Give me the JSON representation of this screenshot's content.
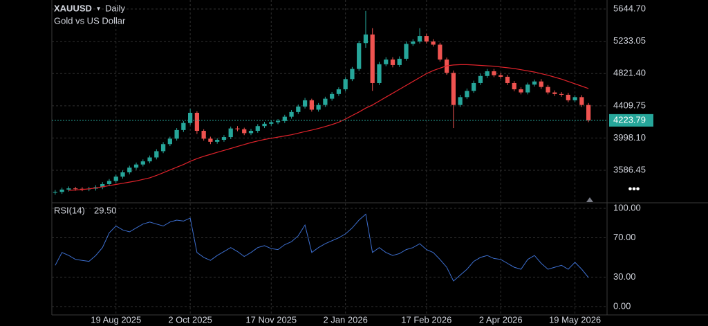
{
  "chart_data": [
    {
      "type": "candlestick",
      "symbol": "XAUUSD",
      "interval": "Daily",
      "subtitle": "Gold vs US Dollar",
      "up_color": "#26a69a",
      "down_color": "#ef5350",
      "ma_color": "#e0232b",
      "last_price_color": "#26a69a",
      "categories": [
        null,
        null,
        null,
        null,
        null,
        null,
        null,
        null,
        null,
        "19 Aug 2025",
        null,
        null,
        null,
        null,
        null,
        null,
        null,
        null,
        null,
        null,
        "2 Oct 2025",
        null,
        null,
        null,
        null,
        null,
        null,
        null,
        null,
        null,
        null,
        null,
        "17 Nov 2025",
        null,
        null,
        null,
        null,
        null,
        null,
        null,
        null,
        null,
        null,
        "2 Jan 2026",
        null,
        null,
        null,
        null,
        null,
        null,
        null,
        null,
        null,
        null,
        null,
        "17 Feb 2026",
        null,
        null,
        null,
        null,
        null,
        null,
        null,
        null,
        null,
        null,
        "2 Apr 2026",
        null,
        null,
        null,
        null,
        null,
        null,
        null,
        null,
        null,
        null,
        "19 May 2026",
        null,
        null
      ],
      "open": [
        3300,
        3310,
        3340,
        3355,
        3350,
        3345,
        3352,
        3370,
        3410,
        3450,
        3505,
        3560,
        3620,
        3660,
        3700,
        3750,
        3830,
        3920,
        3990,
        4100,
        4190,
        4320,
        4090,
        3990,
        3950,
        3975,
        4010,
        4120,
        4110,
        4060,
        4090,
        4150,
        4180,
        4200,
        4215,
        4270,
        4330,
        4400,
        4480,
        4360,
        4420,
        4500,
        4560,
        4620,
        4750,
        4880,
        5210,
        5320,
        4700,
        4940,
        5000,
        4930,
        5010,
        5200,
        5230,
        5300,
        5230,
        5190,
        5000,
        4830,
        4420,
        4520,
        4600,
        4700,
        4790,
        4850,
        4800,
        4780,
        4700,
        4620,
        4580,
        4680,
        4720,
        4650,
        4580,
        4560,
        4550,
        4480,
        4520,
        4420
      ],
      "high": [
        3335,
        3365,
        3380,
        3375,
        3370,
        3375,
        3395,
        3435,
        3475,
        3530,
        3585,
        3645,
        3685,
        3725,
        3775,
        3855,
        3945,
        4015,
        4125,
        4215,
        4370,
        4340,
        4110,
        4015,
        3995,
        4035,
        4145,
        4150,
        4130,
        4115,
        4175,
        4205,
        4225,
        4240,
        4295,
        4355,
        4425,
        4510,
        4500,
        4445,
        4525,
        4585,
        4645,
        4775,
        4905,
        5240,
        5620,
        5400,
        4970,
        5030,
        5030,
        5040,
        5230,
        5260,
        5400,
        5330,
        5260,
        5215,
        5025,
        4860,
        4550,
        4630,
        4730,
        4820,
        4880,
        4880,
        4830,
        4805,
        4725,
        4645,
        4705,
        4745,
        4750,
        4675,
        4605,
        4585,
        4575,
        4545,
        4545,
        4445
      ],
      "low": [
        3275,
        3285,
        3315,
        3325,
        3320,
        3320,
        3327,
        3345,
        3385,
        3425,
        3480,
        3535,
        3595,
        3635,
        3675,
        3725,
        3805,
        3895,
        3965,
        4075,
        4165,
        4050,
        3965,
        3920,
        3925,
        3950,
        3985,
        4085,
        4035,
        4035,
        4065,
        4125,
        4155,
        4175,
        4190,
        4245,
        4305,
        4375,
        4335,
        4335,
        4395,
        4475,
        4535,
        4595,
        4725,
        4855,
        5150,
        4600,
        4675,
        4915,
        4900,
        4905,
        4985,
        5175,
        5205,
        5205,
        5165,
        4975,
        4805,
        4125,
        4395,
        4495,
        4575,
        4675,
        4765,
        4775,
        4755,
        4675,
        4595,
        4555,
        4555,
        4655,
        4625,
        4555,
        4535,
        4525,
        4455,
        4455,
        4395,
        4200
      ],
      "close": [
        3310,
        3340,
        3355,
        3350,
        3345,
        3352,
        3370,
        3410,
        3450,
        3505,
        3560,
        3620,
        3660,
        3700,
        3750,
        3830,
        3920,
        3990,
        4100,
        4190,
        4320,
        4090,
        3990,
        3950,
        3975,
        4010,
        4120,
        4110,
        4060,
        4090,
        4150,
        4180,
        4200,
        4215,
        4270,
        4330,
        4400,
        4480,
        4360,
        4420,
        4500,
        4560,
        4620,
        4750,
        4880,
        5210,
        5320,
        4700,
        4940,
        5000,
        4930,
        5010,
        5200,
        5230,
        5300,
        5230,
        5190,
        5000,
        4830,
        4420,
        4520,
        4600,
        4700,
        4790,
        4850,
        4800,
        4780,
        4700,
        4620,
        4580,
        4680,
        4720,
        4650,
        4580,
        4560,
        4550,
        4480,
        4520,
        4420,
        4223.79
      ],
      "ma": [
        null,
        null,
        3330,
        3335,
        3340,
        3350,
        3360,
        3375,
        3390,
        3405,
        3420,
        3435,
        3450,
        3470,
        3490,
        3520,
        3555,
        3590,
        3625,
        3660,
        3700,
        3735,
        3765,
        3790,
        3815,
        3840,
        3865,
        3890,
        3915,
        3940,
        3960,
        3980,
        3995,
        4010,
        4025,
        4040,
        4060,
        4080,
        4100,
        4120,
        4145,
        4170,
        4200,
        4240,
        4285,
        4330,
        4380,
        4420,
        4470,
        4520,
        4570,
        4620,
        4670,
        4720,
        4770,
        4820,
        4860,
        4890,
        4920,
        4930,
        4935,
        4935,
        4930,
        4925,
        4920,
        4915,
        4905,
        4895,
        4885,
        4870,
        4855,
        4840,
        4820,
        4800,
        4775,
        4750,
        4720,
        4690,
        4660,
        4630
      ],
      "ylim": [
        3180,
        5760
      ],
      "yticks": [
        {
          "value": 5644.7,
          "label": "5644.70"
        },
        5233.05,
        {
          "value": 4821.4,
          "label": "4821.40"
        },
        4409.75,
        {
          "value": 3998.1,
          "label": "3998.10"
        },
        3586.45
      ],
      "grid": true
    },
    {
      "type": "line",
      "name": "RSI(14)",
      "current_label": "29.50",
      "color": "#3d6fd0",
      "values": [
        42,
        55,
        52,
        48,
        47,
        46,
        52,
        60,
        75,
        82,
        78,
        76,
        80,
        84,
        86,
        84,
        82,
        86,
        88,
        87,
        90,
        55,
        50,
        47,
        52,
        56,
        60,
        56,
        51,
        55,
        60,
        62,
        59,
        58,
        63,
        66,
        72,
        83,
        55,
        60,
        64,
        67,
        70,
        74,
        80,
        88,
        94,
        55,
        60,
        55,
        52,
        54,
        58,
        60,
        64,
        58,
        55,
        48,
        40,
        26,
        32,
        38,
        46,
        50,
        52,
        49,
        48,
        44,
        40,
        38,
        48,
        52,
        44,
        38,
        40,
        42,
        38,
        45,
        38,
        29.5
      ],
      "ylim": [
        -8.5,
        105.6
      ],
      "yticks": [
        {
          "value": 100,
          "label": "100.00"
        },
        {
          "value": 70,
          "label": "70.00"
        },
        {
          "value": 30,
          "label": "30.00"
        },
        {
          "value": 0,
          "label": "0.00"
        }
      ],
      "grid": true
    }
  ]
}
